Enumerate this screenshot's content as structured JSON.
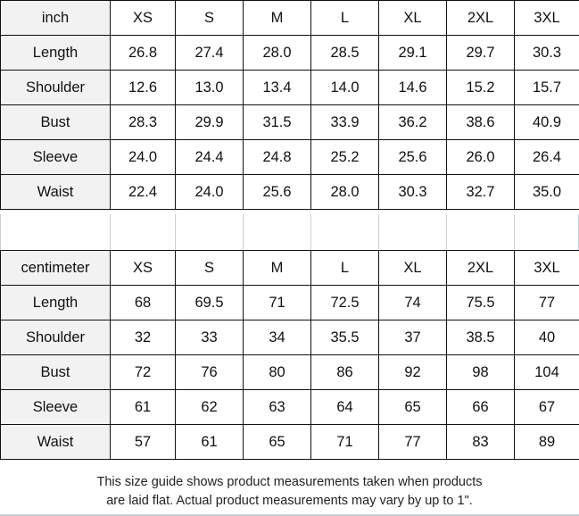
{
  "sizes": [
    "XS",
    "S",
    "M",
    "L",
    "XL",
    "2XL",
    "3XL"
  ],
  "inch_table": {
    "unit": "inch",
    "rows": [
      {
        "label": "Length",
        "values": [
          "26.8",
          "27.4",
          "28.0",
          "28.5",
          "29.1",
          "29.7",
          "30.3"
        ]
      },
      {
        "label": "Shoulder",
        "values": [
          "12.6",
          "13.0",
          "13.4",
          "14.0",
          "14.6",
          "15.2",
          "15.7"
        ]
      },
      {
        "label": "Bust",
        "values": [
          "28.3",
          "29.9",
          "31.5",
          "33.9",
          "36.2",
          "38.6",
          "40.9"
        ]
      },
      {
        "label": "Sleeve",
        "values": [
          "24.0",
          "24.4",
          "24.8",
          "25.2",
          "25.6",
          "26.0",
          "26.4"
        ]
      },
      {
        "label": "Waist",
        "values": [
          "22.4",
          "24.0",
          "25.6",
          "28.0",
          "30.3",
          "32.7",
          "35.0"
        ]
      }
    ]
  },
  "cm_table": {
    "unit": "centimeter",
    "rows": [
      {
        "label": "Length",
        "values": [
          "68",
          "69.5",
          "71",
          "72.5",
          "74",
          "75.5",
          "77"
        ]
      },
      {
        "label": "Shoulder",
        "values": [
          "32",
          "33",
          "34",
          "35.5",
          "37",
          "38.5",
          "40"
        ]
      },
      {
        "label": "Bust",
        "values": [
          "72",
          "76",
          "80",
          "86",
          "92",
          "98",
          "104"
        ]
      },
      {
        "label": "Sleeve",
        "values": [
          "61",
          "62",
          "63",
          "64",
          "65",
          "66",
          "67"
        ]
      },
      {
        "label": "Waist",
        "values": [
          "57",
          "61",
          "65",
          "71",
          "77",
          "83",
          "89"
        ]
      }
    ]
  },
  "note": {
    "line1": "This size guide shows product measurements taken when products",
    "line2": "are laid flat. Actual product measurements may vary by up to 1\"."
  }
}
